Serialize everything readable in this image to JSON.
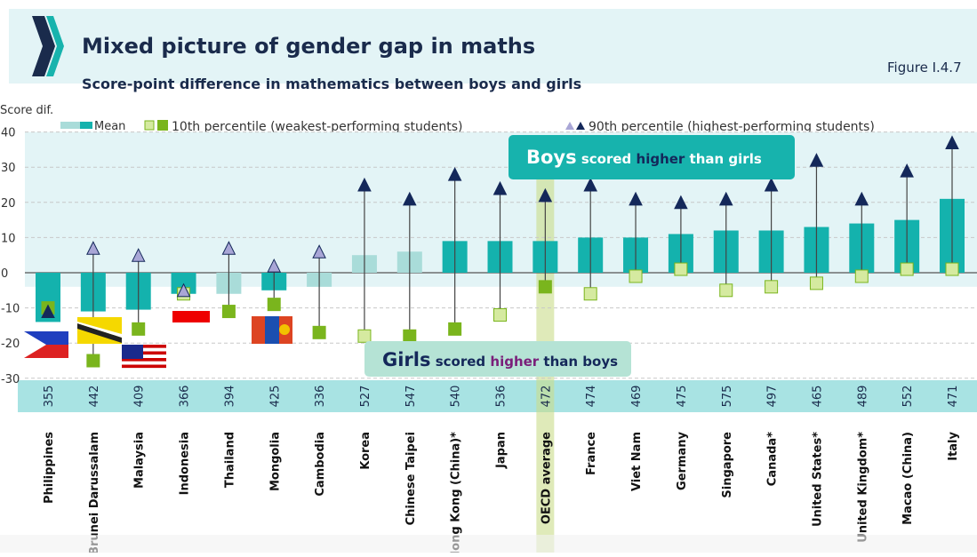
{
  "header": {
    "title": "Mixed picture of gender gap in maths",
    "subtitle": "Score-point difference in mathematics between boys and girls",
    "figure": "Figure I.4.7"
  },
  "colors": {
    "mean": "#14b2ad",
    "mean_light": "#a9dcd9",
    "p10": "#7ab51d",
    "p10_light": "#d5eaa0",
    "p90": "#14285a",
    "p90_light": "#a9a6d6",
    "navy": "#1a2b4c"
  },
  "annotations": {
    "boys_big": "Boys",
    "boys_mid": " scored ",
    "boys_hi": "higher",
    "boys_end": " than girls",
    "girls_big": "Girls",
    "girls_mid": " scored ",
    "girls_hi": "higher",
    "girls_end": " than boys"
  },
  "chart_data": {
    "type": "bar",
    "title": "Score-point difference in mathematics between boys and girls",
    "ylabel": "Score dif.",
    "ylim": [
      -30,
      40
    ],
    "yticks": [
      "-30",
      "-20",
      "-10",
      "0",
      "10",
      "20",
      "30",
      "40"
    ],
    "legend": {
      "mean": "Mean",
      "p10": "10th percentile (weakest-performing students)",
      "p90": "90th percentile (highest-performing students)",
      "placement": "top"
    },
    "categories": [
      "Philippines",
      "Brunei Darussalam",
      "Malaysia",
      "Indonesia",
      "Thailand",
      "Mongolia",
      "Cambodia",
      "Korea",
      "Chinese Taipei",
      "Hong Kong (China)*",
      "Japan",
      "OECD average",
      "France",
      "Viet Nam",
      "Germany",
      "Singapore",
      "Canada*",
      "United States*",
      "United Kingdom*",
      "Macao (China)",
      "Italy"
    ],
    "mean_scores": [
      "355",
      "442",
      "409",
      "366",
      "394",
      "425",
      "336",
      "527",
      "547",
      "540",
      "536",
      "472",
      "474",
      "469",
      "475",
      "575",
      "497",
      "465",
      "489",
      "552",
      "471"
    ],
    "series": [
      {
        "name": "Mean",
        "values": [
          -14,
          -11,
          -10.5,
          -6,
          -6,
          -5,
          -4,
          5,
          6,
          9,
          9,
          9,
          10,
          10,
          11,
          12,
          12,
          13,
          14,
          15,
          21
        ],
        "significant": [
          true,
          true,
          true,
          true,
          false,
          true,
          false,
          false,
          false,
          true,
          true,
          true,
          true,
          true,
          true,
          true,
          true,
          true,
          true,
          true,
          true
        ]
      },
      {
        "name": "10th percentile",
        "values": [
          -10,
          -25,
          -16,
          -6,
          -11,
          -9,
          -17,
          -18,
          -18,
          -16,
          -12,
          -4,
          -6,
          -1,
          1,
          -5,
          -4,
          -3,
          -1,
          1,
          1
        ],
        "significant": [
          true,
          true,
          true,
          false,
          true,
          true,
          true,
          false,
          true,
          true,
          false,
          true,
          false,
          false,
          false,
          false,
          false,
          false,
          false,
          false,
          false
        ]
      },
      {
        "name": "90th percentile",
        "values": [
          -11,
          7,
          5,
          -5,
          7,
          2,
          6,
          25,
          21,
          28,
          24,
          22,
          25,
          21,
          20,
          21,
          25,
          32,
          21,
          29,
          37
        ],
        "significant": [
          true,
          false,
          false,
          false,
          false,
          false,
          false,
          true,
          true,
          true,
          true,
          true,
          true,
          true,
          true,
          true,
          true,
          true,
          true,
          true,
          true
        ]
      }
    ],
    "highlight": "OECD average"
  }
}
